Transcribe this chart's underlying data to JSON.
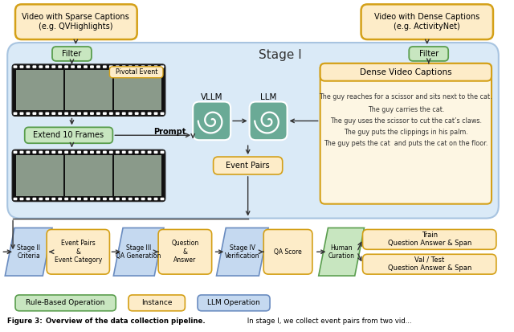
{
  "bg_outer": "#ffffff",
  "bg_stage1": "#daeaf7",
  "color_orange_border": "#d4a017",
  "color_orange_fill": "#fdecc8",
  "color_green_fill": "#c8e6c0",
  "color_green_border": "#5a9e4e",
  "color_blue_fill": "#c5d9f0",
  "color_blue_border": "#6a8cc0",
  "color_openai_green": "#6aaa96",
  "sparse_title": "Video with Sparse Captions\n(e.g. QVHighlights)",
  "dense_title": "Video with Dense Captions\n(e.g. ActivityNet)",
  "filter_label": "Filter",
  "pivotal_label": "Pivotal Event",
  "extend_label": "Extend 10 Frames",
  "prompt_label": "Prompt",
  "vllm_label": "VLLM",
  "llm_label": "LLM",
  "event_pairs_label": "Event Pairs",
  "dense_cap_label": "Dense Video Captions",
  "stage1_label": "Stage I",
  "dense_cap_lines": [
    "The guy reaches for a scissor and sits next to the cat.",
    "The guy carries the cat.",
    "The guy uses the scissor to cut the cat’s claws.",
    "The guy puts the clippings in his palm.",
    "The guy pets the cat  and puts the cat on the floor."
  ],
  "stage2_label": "Stage II\nCriteria",
  "event_cat_label": "Event Pairs\n&\nEvent Category",
  "stage3_label": "Stage III\nQA Generation",
  "qa_label": "Question\n&\nAnswer",
  "stage4_label": "Stage IV\nVerification",
  "qa_score_label": "QA Score",
  "human_label": "Human\nCuration",
  "train_label": "Train\nQuestion Answer & Span",
  "val_label": "Val / Test\nQuestion Answer & Span",
  "legend_green": "Rule-Based Operation",
  "legend_orange": "Instance",
  "legend_blue": "LLM Operation"
}
